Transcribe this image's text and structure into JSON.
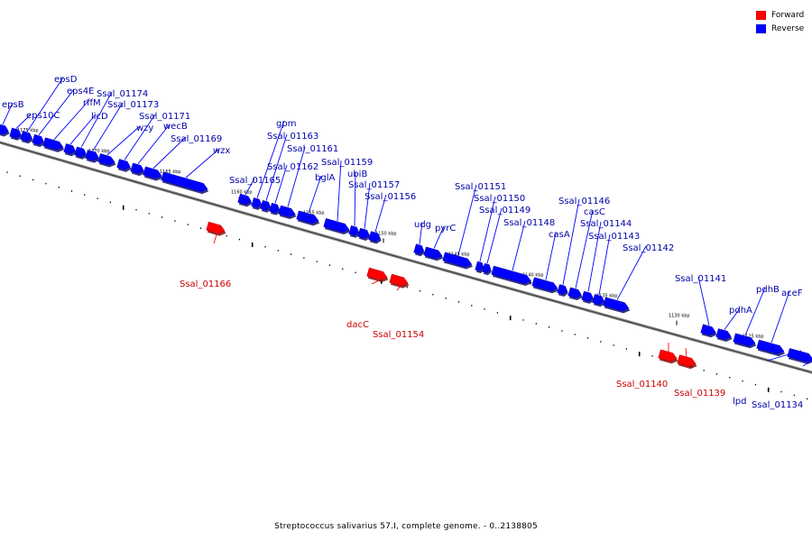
{
  "legend": {
    "forward_label": "Forward",
    "reverse_label": "Reverse",
    "forward_color": "#ff0000",
    "reverse_color": "#0000ff"
  },
  "caption": "Streptococcus salivarius 57.I, complete genome. - 0..2138805",
  "ruler_unit": "kbp",
  "ruler_ticks": [
    {
      "kbp": 1175,
      "label": "1175 kbp"
    },
    {
      "kbp": 1170,
      "label": "1170 kbp"
    },
    {
      "kbp": 1165,
      "label": "1165 kbp"
    },
    {
      "kbp": 1160,
      "label": "1160 kbp"
    },
    {
      "kbp": 1155,
      "label": "1155 kbp"
    },
    {
      "kbp": 1150,
      "label": "1150 kbp"
    },
    {
      "kbp": 1145,
      "label": "1145 kbp"
    },
    {
      "kbp": 1140,
      "label": "1140 kbp"
    },
    {
      "kbp": 1135,
      "label": "1135 kbp"
    },
    {
      "kbp": 1130,
      "label": "1130 kbp"
    },
    {
      "kbp": 1125,
      "label": "1125 kbp"
    }
  ],
  "genes": [
    {
      "name": "epsB",
      "strand": "reverse"
    },
    {
      "name": "eps10C",
      "strand": "reverse"
    },
    {
      "name": "epsD",
      "strand": "reverse"
    },
    {
      "name": "eps4E",
      "strand": "reverse"
    },
    {
      "name": "rffM",
      "strand": "reverse"
    },
    {
      "name": "licD",
      "strand": "reverse"
    },
    {
      "name": "Ssal_01174",
      "strand": "reverse"
    },
    {
      "name": "Ssal_01173",
      "strand": "reverse"
    },
    {
      "name": "wzy",
      "strand": "reverse"
    },
    {
      "name": "Ssal_01171",
      "strand": "reverse"
    },
    {
      "name": "wecB",
      "strand": "reverse"
    },
    {
      "name": "Ssal_01169",
      "strand": "reverse"
    },
    {
      "name": "wzx",
      "strand": "reverse"
    },
    {
      "name": "Ssal_01166",
      "strand": "forward"
    },
    {
      "name": "Ssal_01165",
      "strand": "reverse"
    },
    {
      "name": "gpm",
      "strand": "reverse"
    },
    {
      "name": "Ssal_01163",
      "strand": "reverse"
    },
    {
      "name": "Ssal_01162",
      "strand": "reverse"
    },
    {
      "name": "Ssal_01161",
      "strand": "reverse"
    },
    {
      "name": "bglA",
      "strand": "reverse"
    },
    {
      "name": "Ssal_01159",
      "strand": "reverse"
    },
    {
      "name": "ubiB",
      "strand": "reverse"
    },
    {
      "name": "Ssal_01157",
      "strand": "reverse"
    },
    {
      "name": "Ssal_01156",
      "strand": "reverse"
    },
    {
      "name": "dacC",
      "strand": "forward"
    },
    {
      "name": "Ssal_01154",
      "strand": "forward"
    },
    {
      "name": "udg",
      "strand": "reverse"
    },
    {
      "name": "pyrC",
      "strand": "reverse"
    },
    {
      "name": "Ssal_01151",
      "strand": "reverse"
    },
    {
      "name": "Ssal_01150",
      "strand": "reverse"
    },
    {
      "name": "Ssal_01149",
      "strand": "reverse"
    },
    {
      "name": "Ssal_01148",
      "strand": "reverse"
    },
    {
      "name": "casA",
      "strand": "reverse"
    },
    {
      "name": "Ssal_01146",
      "strand": "reverse"
    },
    {
      "name": "casC",
      "strand": "reverse"
    },
    {
      "name": "Ssal_01144",
      "strand": "reverse"
    },
    {
      "name": "Ssal_01143",
      "strand": "reverse"
    },
    {
      "name": "Ssal_01142",
      "strand": "reverse"
    },
    {
      "name": "Ssal_01141",
      "strand": "reverse"
    },
    {
      "name": "Ssal_01140",
      "strand": "forward"
    },
    {
      "name": "Ssal_01139",
      "strand": "forward"
    },
    {
      "name": "pdhA",
      "strand": "reverse"
    },
    {
      "name": "pdhB",
      "strand": "reverse"
    },
    {
      "name": "aceF",
      "strand": "reverse"
    },
    {
      "name": "lpd",
      "strand": "reverse"
    },
    {
      "name": "Ssal_01134",
      "strand": "reverse"
    }
  ]
}
